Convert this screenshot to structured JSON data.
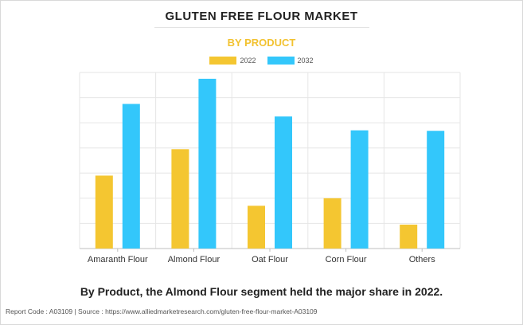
{
  "header": {
    "title": "GLUTEN FREE FLOUR MARKET",
    "subtitle": "BY PRODUCT"
  },
  "colors": {
    "series_2022": "#f4c631",
    "series_2032": "#33c7fb",
    "grid": "#e6e6e6",
    "axis": "#bfbfbf"
  },
  "chart_data": {
    "type": "bar",
    "categories": [
      "Amaranth Flour",
      "Almond Flour",
      "Oat Flour",
      "Corn Flour",
      "Others"
    ],
    "series": [
      {
        "name": "2022",
        "values": [
          2.9,
          3.95,
          1.7,
          2.0,
          0.95
        ]
      },
      {
        "name": "2032",
        "values": [
          5.75,
          6.75,
          5.25,
          4.7,
          4.68
        ]
      }
    ],
    "ylim": [
      0,
      7
    ],
    "grid": true,
    "legend_position": "top-center",
    "title": "GLUTEN FREE FLOUR MARKET",
    "subtitle": "BY PRODUCT"
  },
  "caption": "By Product, the Almond Flour segment held the major share in 2022.",
  "footer": "Report Code : A03109  |  Source : https://www.alliedmarketresearch.com/gluten-free-flour-market-A03109"
}
